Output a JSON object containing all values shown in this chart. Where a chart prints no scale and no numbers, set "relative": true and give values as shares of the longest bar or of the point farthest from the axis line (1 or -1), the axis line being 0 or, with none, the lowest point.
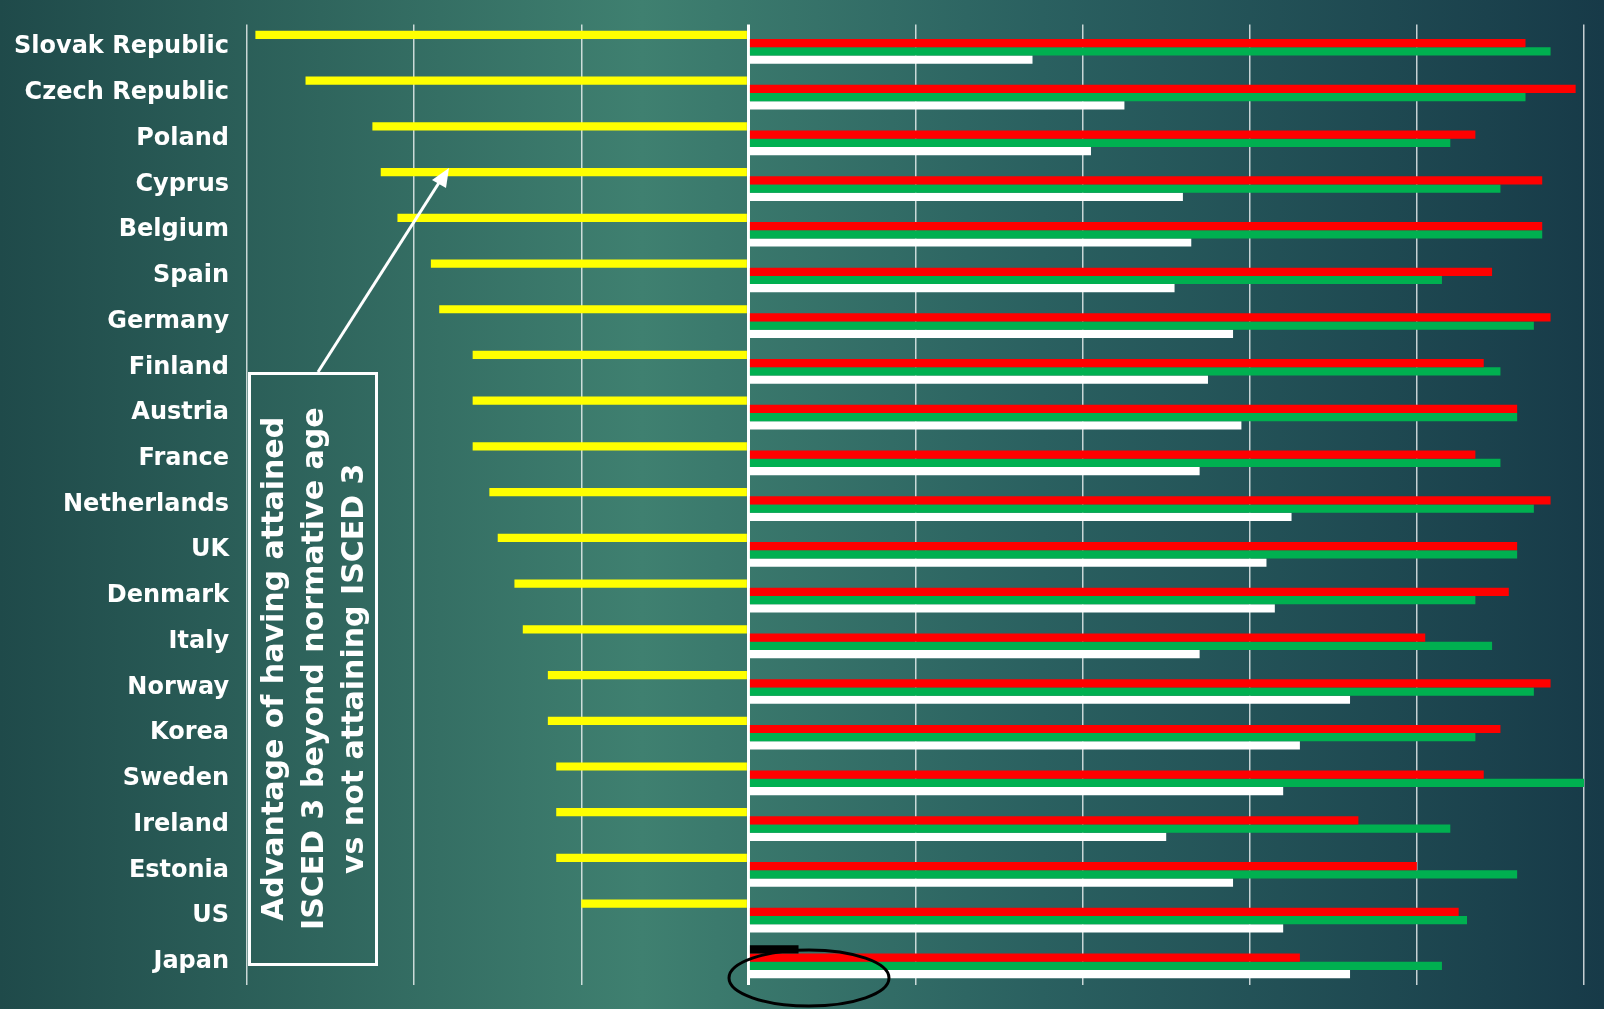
{
  "chart_data": {
    "type": "bar",
    "orientation": "horizontal",
    "relative": true,
    "grid": "x",
    "legend": false,
    "categories": [
      "Slovak Republic",
      "Czech Republic",
      "Poland",
      "Cyprus",
      "Belgium",
      "Spain",
      "Germany",
      "Finland",
      "Austria",
      "France",
      "Netherlands",
      "UK",
      "Denmark",
      "Italy",
      "Norway",
      "Korea",
      "Sweden",
      "Ireland",
      "Estonia",
      "US",
      "Japan"
    ],
    "series": [
      {
        "color": "#ffff00",
        "colors": [
          "#ffff00",
          "#ffff00",
          "#ffff00",
          "#ffff00",
          "#ffff00",
          "#ffff00",
          "#ffff00",
          "#ffff00",
          "#ffff00",
          "#ffff00",
          "#ffff00",
          "#ffff00",
          "#ffff00",
          "#ffff00",
          "#ffff00",
          "#ffff00",
          "#ffff00",
          "#ffff00",
          "#ffff00",
          "#ffff00",
          "#000000"
        ],
        "values": [
          -0.59,
          -0.53,
          -0.45,
          -0.44,
          -0.42,
          -0.38,
          -0.37,
          -0.33,
          -0.33,
          -0.33,
          -0.31,
          -0.3,
          -0.28,
          -0.27,
          -0.24,
          -0.24,
          -0.23,
          -0.23,
          -0.23,
          -0.2,
          0.06
        ]
      },
      {
        "color": "#ff0000",
        "values": [
          0.93,
          0.99,
          0.87,
          0.95,
          0.95,
          0.89,
          0.96,
          0.88,
          0.92,
          0.87,
          0.96,
          0.92,
          0.91,
          0.81,
          0.96,
          0.9,
          0.88,
          0.73,
          0.8,
          0.85,
          0.66
        ]
      },
      {
        "color": "#00b050",
        "values": [
          0.96,
          0.93,
          0.84,
          0.9,
          0.95,
          0.83,
          0.94,
          0.9,
          0.92,
          0.9,
          0.94,
          0.92,
          0.87,
          0.89,
          0.94,
          0.87,
          1,
          0.84,
          0.92,
          0.86,
          0.83
        ]
      },
      {
        "color": "#ffffff",
        "values": [
          0.34,
          0.45,
          0.41,
          0.52,
          0.53,
          0.51,
          0.58,
          0.55,
          0.59,
          0.54,
          0.65,
          0.62,
          0.63,
          0.54,
          0.72,
          0.66,
          0.64,
          0.5,
          0.58,
          0.64,
          0.72
        ]
      }
    ],
    "annotations": [
      "Advantage of having attained ISCED 3 beyond normative age vs not attaining ISCED 3"
    ]
  }
}
